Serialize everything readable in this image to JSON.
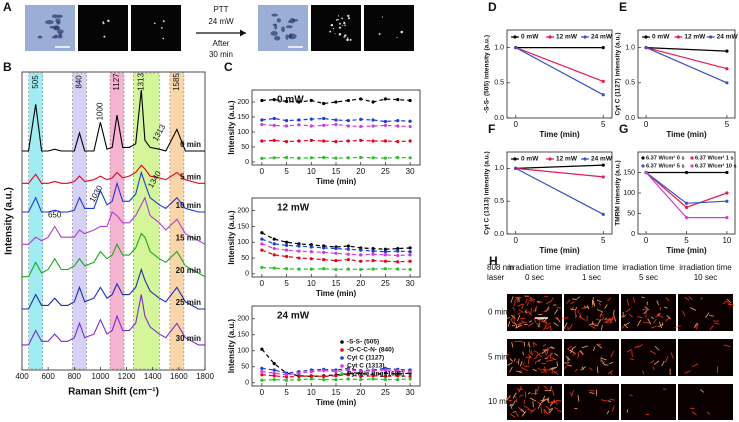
{
  "panel_a": {
    "panel": "A",
    "arrow_text": [
      "PTT",
      "24 mW",
      "After",
      "30 min"
    ]
  },
  "panel_h": {
    "panel": "H",
    "laser_label": [
      "808 nm",
      "laser"
    ],
    "columns": [
      [
        "irradiation time",
        "0 sec"
      ],
      [
        "irradiation time",
        "1 sec"
      ],
      [
        "irradiation time",
        "5 sec"
      ],
      [
        "irradiation time",
        "10 sec"
      ]
    ],
    "rows": [
      "0 min",
      "5 min",
      "10 min"
    ]
  },
  "chart_data": [
    {
      "type": "spectrum",
      "panel": "B",
      "xlabel": "Raman Shift (cm⁻¹)",
      "ylabel": "Intensity (a.u.)",
      "x": [
        400,
        450,
        505,
        550,
        600,
        650,
        700,
        750,
        800,
        840,
        880,
        950,
        1000,
        1050,
        1090,
        1127,
        1170,
        1220,
        1270,
        1313,
        1340,
        1380,
        1450,
        1500,
        1585,
        1650,
        1700,
        1750,
        1800
      ],
      "xlim": [
        400,
        1800
      ],
      "xticks": [
        400,
        600,
        800,
        1000,
        1200,
        1400,
        1600,
        1800
      ],
      "ylim": [
        0.5,
        8.8
      ],
      "bands": [
        {
          "center": 505,
          "color": "#7fe8f0"
        },
        {
          "center": 840,
          "color": "#c9c3f2"
        },
        {
          "center": 1127,
          "color": "#f59ac4"
        },
        {
          "center": 1313,
          "color": "#c8f27a"
        },
        {
          "center": 1585,
          "color": "#f7c98b"
        }
      ],
      "peak_labels": [
        1000,
        650,
        1030,
        1313,
        1340
      ],
      "series": [
        {
          "name": "0 min",
          "color": "#000000",
          "values": [
            6.6,
            6.6,
            7.9,
            6.6,
            6.6,
            6.65,
            6.6,
            6.6,
            6.6,
            7.1,
            6.6,
            6.6,
            7.4,
            6.65,
            6.7,
            7.6,
            6.7,
            6.7,
            6.8,
            8.3,
            6.9,
            6.7,
            6.65,
            6.6,
            7.2,
            6.6,
            6.6,
            6.6,
            6.6
          ]
        },
        {
          "name": "5 min",
          "color": "#e8001c",
          "values": [
            5.7,
            5.7,
            5.95,
            5.7,
            5.7,
            5.75,
            5.7,
            5.7,
            5.75,
            5.9,
            5.75,
            5.8,
            5.9,
            5.8,
            5.85,
            6.0,
            5.85,
            5.9,
            6.0,
            6.2,
            6.1,
            5.9,
            5.85,
            5.8,
            6.0,
            5.8,
            5.75,
            5.7,
            5.7
          ]
        },
        {
          "name": "10 min",
          "color": "#1f3ad6",
          "values": [
            4.9,
            4.9,
            5.3,
            4.9,
            4.9,
            4.95,
            4.9,
            4.9,
            4.95,
            5.3,
            5.0,
            5.0,
            5.5,
            5.1,
            5.2,
            5.7,
            5.2,
            5.2,
            5.4,
            6.0,
            5.7,
            5.3,
            5.1,
            5.0,
            5.3,
            5.0,
            4.95,
            4.9,
            4.9
          ]
        },
        {
          "name": "15 min",
          "color": "#b03ad8",
          "values": [
            4.0,
            4.0,
            4.2,
            4.1,
            4.2,
            4.5,
            4.2,
            4.2,
            4.2,
            4.4,
            4.3,
            4.4,
            4.5,
            4.5,
            4.9,
            4.8,
            4.6,
            4.6,
            4.8,
            5.1,
            5.3,
            4.8,
            4.6,
            4.4,
            4.7,
            4.3,
            4.2,
            4.1,
            4.0
          ]
        },
        {
          "name": "20 min",
          "color": "#1aa81a",
          "values": [
            3.1,
            3.1,
            3.5,
            3.2,
            3.3,
            3.6,
            3.3,
            3.3,
            3.4,
            3.6,
            3.4,
            3.5,
            3.8,
            3.6,
            3.7,
            4.0,
            3.7,
            3.7,
            3.9,
            4.3,
            4.2,
            3.8,
            3.6,
            3.5,
            3.8,
            3.4,
            3.3,
            3.2,
            3.1
          ]
        },
        {
          "name": "25 min",
          "color": "#1a2fb0",
          "values": [
            2.2,
            2.2,
            2.6,
            2.3,
            2.3,
            2.5,
            2.3,
            2.3,
            2.4,
            2.8,
            2.4,
            2.5,
            2.8,
            2.5,
            2.6,
            2.9,
            2.6,
            2.6,
            2.8,
            3.3,
            3.0,
            2.7,
            2.5,
            2.4,
            2.8,
            2.4,
            2.3,
            2.2,
            2.2
          ]
        },
        {
          "name": "30 min",
          "color": "#7a2bd0",
          "values": [
            1.2,
            1.2,
            1.6,
            1.3,
            1.3,
            1.5,
            1.3,
            1.3,
            1.4,
            1.8,
            1.4,
            1.5,
            1.9,
            1.5,
            1.6,
            2.0,
            1.6,
            1.6,
            1.8,
            2.6,
            2.0,
            1.7,
            1.5,
            1.4,
            1.8,
            1.4,
            1.3,
            1.2,
            1.2
          ]
        }
      ]
    },
    {
      "type": "line",
      "panel": "C",
      "title": "0 mW",
      "xlabel": "Time (min)",
      "ylabel": "Intensity (a.u.)",
      "line_style": "dashed",
      "x": [
        0,
        2.5,
        5,
        7.5,
        10,
        12.5,
        15,
        17.5,
        20,
        22.5,
        25,
        27.5,
        30
      ],
      "xlim": [
        -2,
        32
      ],
      "xticks": [
        0,
        5,
        10,
        15,
        20,
        25,
        30
      ],
      "ylim": [
        -10,
        240
      ],
      "yticks": [
        0,
        50,
        100,
        150,
        200
      ],
      "series": [
        {
          "color": "#000000",
          "values": [
            205,
            208,
            202,
            200,
            205,
            195,
            200,
            205,
            210,
            200,
            210,
            208,
            205
          ]
        },
        {
          "color": "#e8001c",
          "values": [
            70,
            72,
            68,
            70,
            72,
            70,
            68,
            70,
            72,
            70,
            70,
            68,
            70
          ]
        },
        {
          "color": "#1f3ad6",
          "values": [
            140,
            145,
            138,
            140,
            143,
            145,
            140,
            138,
            142,
            140,
            135,
            138,
            136
          ]
        },
        {
          "color": "#d63ad8",
          "values": [
            125,
            122,
            120,
            124,
            120,
            122,
            125,
            120,
            118,
            120,
            122,
            120,
            118
          ]
        },
        {
          "color": "#2ac02a",
          "values": [
            12,
            14,
            15,
            13,
            14,
            15,
            13,
            14,
            15,
            14,
            13,
            15,
            14
          ]
        }
      ]
    },
    {
      "type": "line",
      "title": "12 mW",
      "xlabel": "Time (min)",
      "ylabel": "Intensity (a.u.)",
      "line_style": "dashed",
      "x": [
        0,
        2.5,
        5,
        7.5,
        10,
        12.5,
        15,
        17.5,
        20,
        22.5,
        25,
        27.5,
        30
      ],
      "xlim": [
        -2,
        32
      ],
      "xticks": [
        0,
        5,
        10,
        15,
        20,
        25,
        30
      ],
      "ylim": [
        -10,
        240
      ],
      "yticks": [
        0,
        50,
        100,
        150,
        200
      ],
      "series": [
        {
          "color": "#000000",
          "values": [
            130,
            110,
            100,
            95,
            92,
            88,
            85,
            88,
            82,
            80,
            78,
            80,
            82
          ]
        },
        {
          "color": "#e8001c",
          "values": [
            75,
            60,
            55,
            50,
            48,
            45,
            42,
            45,
            40,
            42,
            40,
            38,
            40
          ]
        },
        {
          "color": "#1f3ad6",
          "values": [
            110,
            95,
            90,
            88,
            85,
            82,
            80,
            78,
            75,
            72,
            70,
            72,
            70
          ]
        },
        {
          "color": "#d63ad8",
          "values": [
            95,
            80,
            75,
            72,
            70,
            68,
            65,
            62,
            60,
            62,
            60,
            58,
            60
          ]
        },
        {
          "color": "#2ac02a",
          "values": [
            20,
            18,
            16,
            15,
            15,
            16,
            14,
            15,
            14,
            15,
            16,
            15,
            14
          ]
        }
      ]
    },
    {
      "type": "line",
      "title": "24 mW",
      "xlabel": "Time (min)",
      "ylabel": "Intensity (a.u.)",
      "line_style": "dashed",
      "legend": "lower right",
      "x": [
        0,
        2.5,
        5,
        7.5,
        10,
        12.5,
        15,
        17.5,
        20,
        22.5,
        25,
        27.5,
        30
      ],
      "xlim": [
        -2,
        32
      ],
      "xticks": [
        0,
        5,
        10,
        15,
        20,
        25,
        30
      ],
      "ylim": [
        -10,
        240
      ],
      "yticks": [
        0,
        50,
        100,
        150,
        200
      ],
      "series": [
        {
          "name": "-S-S- (505)",
          "color": "#000000",
          "values": [
            105,
            60,
            30,
            22,
            20,
            22,
            25,
            28,
            30,
            25,
            30,
            28,
            30
          ]
        },
        {
          "name": "-O-C-C-N- (840)",
          "color": "#e8001c",
          "values": [
            25,
            22,
            18,
            20,
            22,
            20,
            22,
            25,
            20,
            22,
            20,
            22,
            20
          ]
        },
        {
          "name": "Cyt C (1127)",
          "color": "#1f3ad6",
          "values": [
            45,
            40,
            30,
            35,
            40,
            42,
            40,
            45,
            38,
            40,
            45,
            42,
            40
          ]
        },
        {
          "name": "Cyt C (1313)",
          "color": "#d63ad8",
          "values": [
            35,
            30,
            25,
            30,
            35,
            38,
            35,
            40,
            35,
            38,
            40,
            38,
            35
          ]
        },
        {
          "name": "Pyrrole ring (1585)",
          "color": "#2ac02a",
          "values": [
            8,
            10,
            8,
            10,
            12,
            10,
            10,
            12,
            10,
            12,
            10,
            10,
            12
          ]
        }
      ]
    },
    {
      "type": "line",
      "panel": "D",
      "xlabel": "Time (min)",
      "ylabel": "-S-S- (505) intensity (a.u.)",
      "legend": "top",
      "x": [
        0,
        5
      ],
      "xlim": [
        -0.5,
        5.5
      ],
      "xticks": [
        0,
        5
      ],
      "ylim": [
        0,
        1.25
      ],
      "yticks": [
        {
          "value": 0,
          "label": "0.0"
        },
        {
          "value": 0.5,
          "label": "0.5"
        },
        {
          "value": 1,
          "label": "1.0"
        }
      ],
      "series": [
        {
          "name": "0 mW",
          "color": "#000000",
          "values": [
            1.0,
            1.0
          ]
        },
        {
          "name": "12 mW",
          "color": "#e8194e",
          "values": [
            1.0,
            0.52
          ]
        },
        {
          "name": "24 mW",
          "color": "#3a4fc8",
          "values": [
            1.0,
            0.33
          ]
        }
      ]
    },
    {
      "type": "line",
      "panel": "E",
      "xlabel": "Time (min)",
      "ylabel": "Cyt C (1127) intensity (a.u.)",
      "legend": "top",
      "x": [
        0,
        5
      ],
      "xlim": [
        -0.5,
        5.5
      ],
      "xticks": [
        0,
        5
      ],
      "ylim": [
        0,
        1.25
      ],
      "yticks": [
        {
          "value": 0,
          "label": "0.0"
        },
        {
          "value": 0.5,
          "label": "0.5"
        },
        {
          "value": 1,
          "label": "1.0"
        }
      ],
      "series": [
        {
          "name": "0 mW",
          "color": "#000000",
          "values": [
            1.0,
            0.95
          ]
        },
        {
          "name": "12 mW",
          "color": "#e8194e",
          "values": [
            1.0,
            0.7
          ]
        },
        {
          "name": "24 mW",
          "color": "#3a4fc8",
          "values": [
            1.0,
            0.5
          ]
        }
      ]
    },
    {
      "type": "line",
      "panel": "F",
      "xlabel": "Time (min)",
      "ylabel": "Cyt C (1313) intensity (a.u.)",
      "legend": "top",
      "x": [
        0,
        5
      ],
      "xlim": [
        -0.5,
        5.5
      ],
      "xticks": [
        0,
        5
      ],
      "ylim": [
        0,
        1.25
      ],
      "yticks": [
        {
          "value": 0,
          "label": "0.0"
        },
        {
          "value": 0.5,
          "label": "0.5"
        },
        {
          "value": 1,
          "label": "1.0"
        }
      ],
      "series": [
        {
          "name": "0 mW",
          "color": "#000000",
          "values": [
            1.0,
            1.05
          ]
        },
        {
          "name": "12 mW",
          "color": "#e8194e",
          "values": [
            1.0,
            0.87
          ]
        },
        {
          "name": "24 mW",
          "color": "#3a4fc8",
          "values": [
            1.0,
            0.3
          ]
        }
      ]
    },
    {
      "type": "line",
      "panel": "G",
      "xlabel": "Time (min)",
      "ylabel": "TMRM intensity (a.u.)",
      "legend": "top2",
      "x": [
        0,
        5,
        10
      ],
      "xlim": [
        -1,
        11
      ],
      "xticks": [
        0,
        5,
        10
      ],
      "ylim": [
        0,
        200
      ],
      "yticks": [
        0,
        50,
        100,
        150
      ],
      "series": [
        {
          "name": "6.37 W/cm² 0 s",
          "color": "#000000",
          "values": [
            150,
            150,
            150
          ]
        },
        {
          "name": "6.37 W/cm² 1 s",
          "color": "#e8194e",
          "values": [
            150,
            65,
            100
          ]
        },
        {
          "name": "6.37 W/cm² 5 s",
          "color": "#3a4fc8",
          "values": [
            150,
            75,
            80
          ]
        },
        {
          "name": "6.37 W/cm² 10 s",
          "color": "#d63ad8",
          "values": [
            150,
            40,
            40
          ]
        }
      ]
    }
  ]
}
